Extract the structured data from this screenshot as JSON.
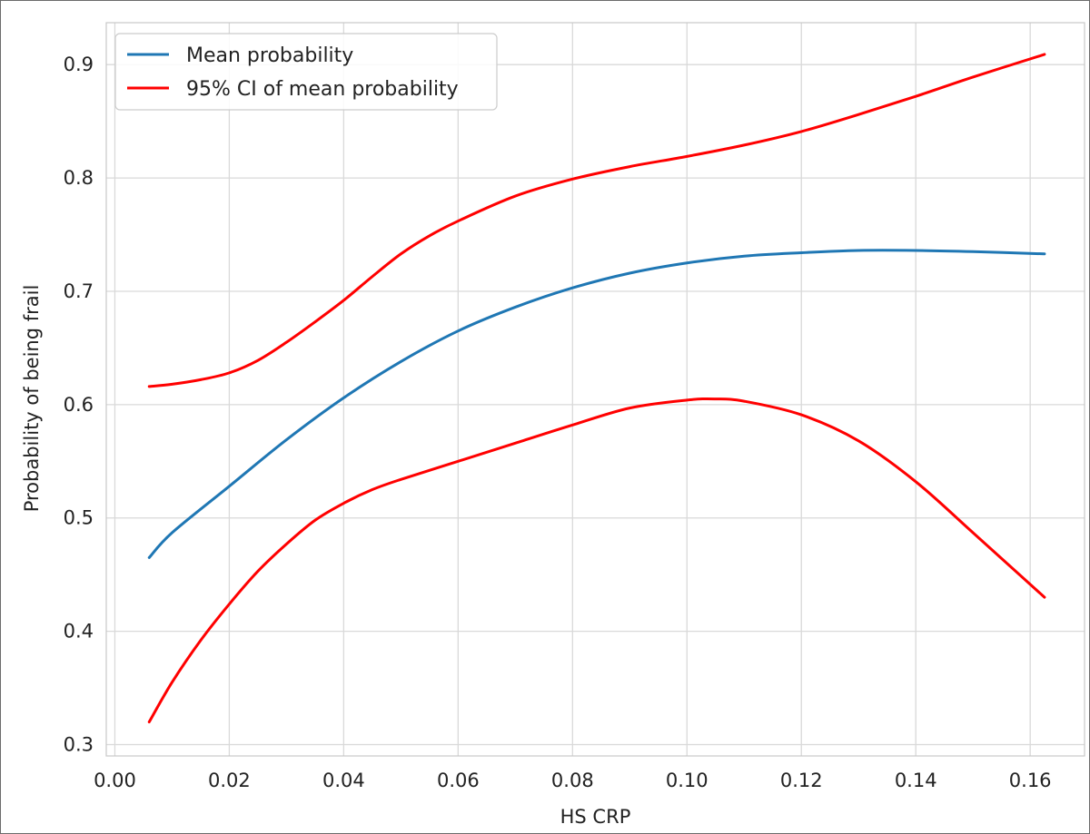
{
  "chart_data": {
    "type": "line",
    "title": "",
    "xlabel": "HS CRP",
    "ylabel": "Probability of being frail",
    "xlim": [
      -0.0015,
      0.1695
    ],
    "ylim": [
      0.29,
      0.937
    ],
    "xticks": [
      0.0,
      0.02,
      0.04,
      0.06,
      0.08,
      0.1,
      0.12,
      0.14,
      0.16
    ],
    "xtick_labels": [
      "0.00",
      "0.02",
      "0.04",
      "0.06",
      "0.08",
      "0.10",
      "0.12",
      "0.14",
      "0.16"
    ],
    "yticks": [
      0.3,
      0.4,
      0.5,
      0.6,
      0.7,
      0.8,
      0.9
    ],
    "ytick_labels": [
      "0.3",
      "0.4",
      "0.5",
      "0.6",
      "0.7",
      "0.8",
      "0.9"
    ],
    "grid": true,
    "legend_position": "top-left",
    "series": [
      {
        "name": "Mean probability",
        "color": "#1f77b4",
        "x": [
          0.006,
          0.01,
          0.02,
          0.03,
          0.04,
          0.05,
          0.06,
          0.07,
          0.08,
          0.09,
          0.1,
          0.11,
          0.12,
          0.13,
          0.14,
          0.15,
          0.1625
        ],
        "y": [
          0.465,
          0.487,
          0.528,
          0.569,
          0.606,
          0.638,
          0.665,
          0.686,
          0.703,
          0.716,
          0.725,
          0.731,
          0.734,
          0.736,
          0.736,
          0.735,
          0.733
        ]
      },
      {
        "name": "95% CI of mean probability",
        "color": "#ff0000",
        "x": [
          0.006,
          0.01,
          0.015,
          0.02,
          0.025,
          0.03,
          0.035,
          0.04,
          0.045,
          0.05,
          0.055,
          0.06,
          0.07,
          0.08,
          0.09,
          0.1,
          0.11,
          0.12,
          0.13,
          0.14,
          0.15,
          0.1625
        ],
        "y": [
          0.616,
          0.618,
          0.622,
          0.628,
          0.639,
          0.655,
          0.673,
          0.692,
          0.713,
          0.733,
          0.749,
          0.762,
          0.784,
          0.799,
          0.81,
          0.819,
          0.829,
          0.841,
          0.856,
          0.872,
          0.889,
          0.909
        ]
      },
      {
        "name": "",
        "color": "#ff0000",
        "x": [
          0.006,
          0.01,
          0.015,
          0.02,
          0.025,
          0.03,
          0.035,
          0.04,
          0.045,
          0.05,
          0.06,
          0.07,
          0.08,
          0.09,
          0.1,
          0.105,
          0.11,
          0.12,
          0.13,
          0.14,
          0.15,
          0.1625
        ],
        "y": [
          0.32,
          0.355,
          0.392,
          0.424,
          0.453,
          0.477,
          0.498,
          0.513,
          0.525,
          0.534,
          0.55,
          0.566,
          0.582,
          0.597,
          0.604,
          0.605,
          0.603,
          0.591,
          0.568,
          0.532,
          0.487,
          0.43
        ]
      }
    ],
    "legend": [
      {
        "label": "Mean probability",
        "color": "#1f77b4"
      },
      {
        "label": "95% CI of mean probability",
        "color": "#ff0000"
      }
    ]
  }
}
